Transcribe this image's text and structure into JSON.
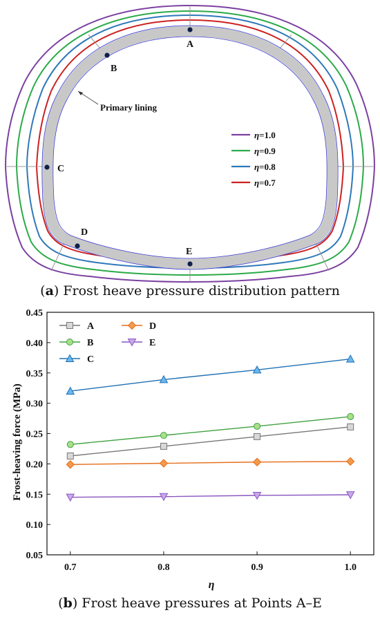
{
  "diagram": {
    "points": [
      "A",
      "B",
      "C",
      "D",
      "E"
    ],
    "lining_label": "Primary lining",
    "legend": [
      {
        "eta": "=1.0",
        "color": "#7b3fa0"
      },
      {
        "eta": "=0.9",
        "color": "#2aaa48"
      },
      {
        "eta": "=0.8",
        "color": "#2e78b8"
      },
      {
        "eta": "=0.7",
        "color": "#cc2020"
      }
    ],
    "eta_symbol": "η",
    "lining_fill": "#c8c8c8",
    "lining_stroke": "#3b3bd6"
  },
  "captions": {
    "a": {
      "tag": "a",
      "text": " Frost heave pressure distribution pattern"
    },
    "b": {
      "tag": "b",
      "text": " Frost heave pressures at Points A–E"
    }
  },
  "chart_data": {
    "type": "line",
    "xlabel": "η",
    "ylabel": "Frost-heaving force (MPa)",
    "x": [
      0.7,
      0.8,
      0.9,
      1.0
    ],
    "xlim": [
      0.675,
      1.025
    ],
    "ylim": [
      0.05,
      0.45
    ],
    "xticks": [
      "0.7",
      "0.8",
      "0.9",
      "1.0"
    ],
    "yticks": [
      "0.05",
      "0.10",
      "0.15",
      "0.20",
      "0.25",
      "0.30",
      "0.35",
      "0.40",
      "0.45"
    ],
    "legend_position": "top-left",
    "series": [
      {
        "name": "A",
        "values": [
          0.213,
          0.229,
          0.245,
          0.261
        ],
        "color": "#777777",
        "marker": "square",
        "fill": "#d8d8d8"
      },
      {
        "name": "B",
        "values": [
          0.232,
          0.247,
          0.262,
          0.278
        ],
        "color": "#3fa13f",
        "marker": "circle",
        "fill": "#a8e08a"
      },
      {
        "name": "C",
        "values": [
          0.32,
          0.339,
          0.355,
          0.373
        ],
        "color": "#1f6fb2",
        "marker": "triangle-up",
        "fill": "#6ab8ee"
      },
      {
        "name": "D",
        "values": [
          0.199,
          0.201,
          0.203,
          0.204
        ],
        "color": "#e56d1a",
        "marker": "diamond",
        "fill": "#f59a4a"
      },
      {
        "name": "E",
        "values": [
          0.145,
          0.146,
          0.148,
          0.149
        ],
        "color": "#8a55c0",
        "marker": "triangle-down",
        "fill": "#c8a8ea"
      }
    ]
  }
}
